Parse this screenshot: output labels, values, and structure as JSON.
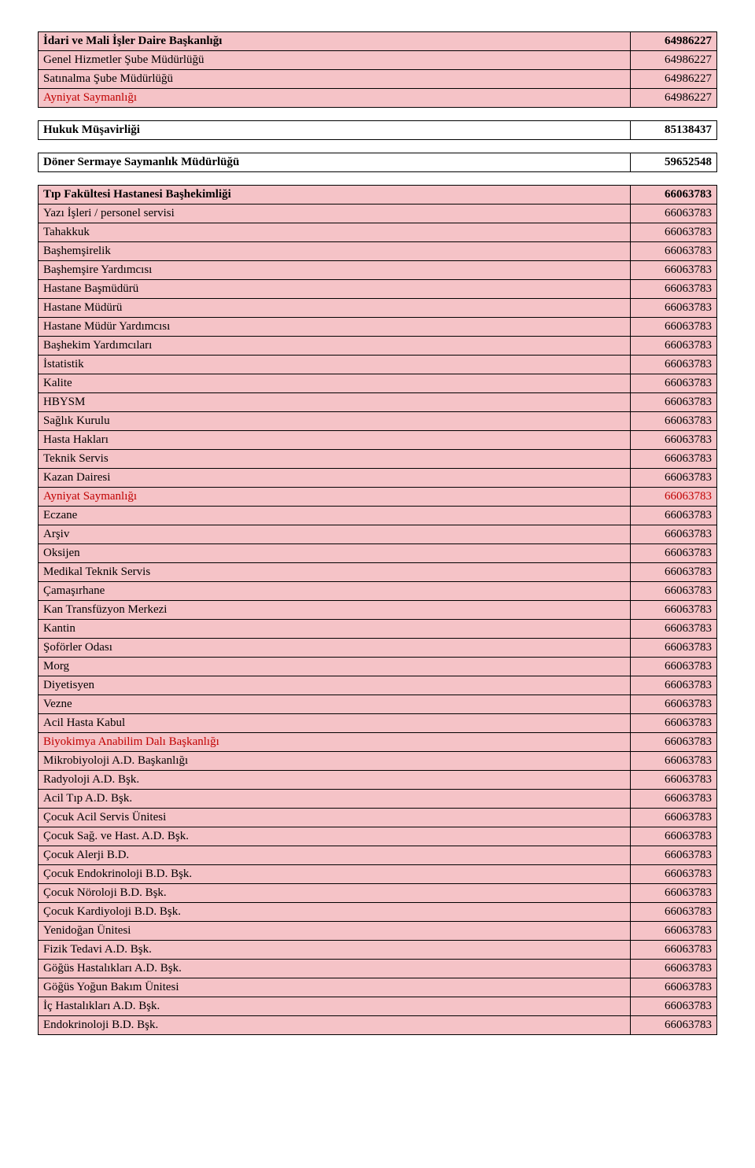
{
  "groups": [
    {
      "rows": [
        {
          "label": "İdari ve Mali İşler Daire Başkanlığı",
          "value": "64986227",
          "bold": true,
          "bg": "#f5c3c7",
          "red": false,
          "numRed": false
        },
        {
          "label": "Genel Hizmetler Şube Müdürlüğü",
          "value": "64986227",
          "bold": false,
          "bg": "#f5c3c7",
          "red": false,
          "numRed": false
        },
        {
          "label": "Satınalma Şube Müdürlüğü",
          "value": "64986227",
          "bold": false,
          "bg": "#f5c3c7",
          "red": false,
          "numRed": false
        },
        {
          "label": "Ayniyat Saymanlığı",
          "value": "64986227",
          "bold": false,
          "bg": "#f5c3c7",
          "red": true,
          "numRed": false
        }
      ]
    },
    {
      "rows": [
        {
          "label": "Hukuk Müşavirliği",
          "value": "85138437",
          "bold": true,
          "bg": "#ffffff",
          "red": false,
          "numRed": false
        }
      ]
    },
    {
      "rows": [
        {
          "label": "Döner Sermaye Saymanlık Müdürlüğü",
          "value": "59652548",
          "bold": true,
          "bg": "#ffffff",
          "red": false,
          "numRed": false
        }
      ]
    },
    {
      "rows": [
        {
          "label": "Tıp Fakültesi Hastanesi Başhekimliği",
          "value": "66063783",
          "bold": true,
          "bg": "#f5c3c7",
          "red": false,
          "numRed": false
        },
        {
          "label": "Yazı İşleri / personel servisi",
          "value": "66063783",
          "bold": false,
          "bg": "#f5c3c7",
          "red": false,
          "numRed": false
        },
        {
          "label": "Tahakkuk",
          "value": "66063783",
          "bold": false,
          "bg": "#f5c3c7",
          "red": false,
          "numRed": false
        },
        {
          "label": "Başhemşirelik",
          "value": "66063783",
          "bold": false,
          "bg": "#f5c3c7",
          "red": false,
          "numRed": false
        },
        {
          "label": "Başhemşire Yardımcısı",
          "value": "66063783",
          "bold": false,
          "bg": "#f5c3c7",
          "red": false,
          "numRed": false
        },
        {
          "label": "Hastane Başmüdürü",
          "value": "66063783",
          "bold": false,
          "bg": "#f5c3c7",
          "red": false,
          "numRed": false
        },
        {
          "label": "Hastane Müdürü",
          "value": "66063783",
          "bold": false,
          "bg": "#f5c3c7",
          "red": false,
          "numRed": false
        },
        {
          "label": "Hastane Müdür Yardımcısı",
          "value": "66063783",
          "bold": false,
          "bg": "#f5c3c7",
          "red": false,
          "numRed": false
        },
        {
          "label": "Başhekim Yardımcıları",
          "value": "66063783",
          "bold": false,
          "bg": "#f5c3c7",
          "red": false,
          "numRed": false
        },
        {
          "label": "İstatistik",
          "value": "66063783",
          "bold": false,
          "bg": "#f5c3c7",
          "red": false,
          "numRed": false
        },
        {
          "label": "Kalite",
          "value": "66063783",
          "bold": false,
          "bg": "#f5c3c7",
          "red": false,
          "numRed": false
        },
        {
          "label": "HBYSM",
          "value": "66063783",
          "bold": false,
          "bg": "#f5c3c7",
          "red": false,
          "numRed": false
        },
        {
          "label": "Sağlık Kurulu",
          "value": "66063783",
          "bold": false,
          "bg": "#f5c3c7",
          "red": false,
          "numRed": false
        },
        {
          "label": "Hasta Hakları",
          "value": "66063783",
          "bold": false,
          "bg": "#f5c3c7",
          "red": false,
          "numRed": false
        },
        {
          "label": "Teknik Servis",
          "value": "66063783",
          "bold": false,
          "bg": "#f5c3c7",
          "red": false,
          "numRed": false
        },
        {
          "label": "Kazan Dairesi",
          "value": "66063783",
          "bold": false,
          "bg": "#f5c3c7",
          "red": false,
          "numRed": false
        },
        {
          "label": "Ayniyat Saymanlığı",
          "value": "66063783",
          "bold": false,
          "bg": "#f5c3c7",
          "red": true,
          "numRed": true
        },
        {
          "label": "Eczane",
          "value": "66063783",
          "bold": false,
          "bg": "#f5c3c7",
          "red": false,
          "numRed": false
        },
        {
          "label": "Arşiv",
          "value": "66063783",
          "bold": false,
          "bg": "#f5c3c7",
          "red": false,
          "numRed": false
        },
        {
          "label": "Oksijen",
          "value": "66063783",
          "bold": false,
          "bg": "#f5c3c7",
          "red": false,
          "numRed": false
        },
        {
          "label": "Medikal Teknik Servis",
          "value": "66063783",
          "bold": false,
          "bg": "#f5c3c7",
          "red": false,
          "numRed": false
        },
        {
          "label": "Çamaşırhane",
          "value": "66063783",
          "bold": false,
          "bg": "#f5c3c7",
          "red": false,
          "numRed": false
        },
        {
          "label": "Kan Transfüzyon Merkezi",
          "value": "66063783",
          "bold": false,
          "bg": "#f5c3c7",
          "red": false,
          "numRed": false
        },
        {
          "label": "Kantin",
          "value": "66063783",
          "bold": false,
          "bg": "#f5c3c7",
          "red": false,
          "numRed": false
        },
        {
          "label": "Şoförler Odası",
          "value": "66063783",
          "bold": false,
          "bg": "#f5c3c7",
          "red": false,
          "numRed": false
        },
        {
          "label": "Morg",
          "value": "66063783",
          "bold": false,
          "bg": "#f5c3c7",
          "red": false,
          "numRed": false
        },
        {
          "label": "Diyetisyen",
          "value": "66063783",
          "bold": false,
          "bg": "#f5c3c7",
          "red": false,
          "numRed": false
        },
        {
          "label": "Vezne",
          "value": "66063783",
          "bold": false,
          "bg": "#f5c3c7",
          "red": false,
          "numRed": false
        },
        {
          "label": "Acil Hasta Kabul",
          "value": "66063783",
          "bold": false,
          "bg": "#f5c3c7",
          "red": false,
          "numRed": false
        },
        {
          "label": "Biyokimya Anabilim Dalı Başkanlığı",
          "value": "66063783",
          "bold": false,
          "bg": "#f5c3c7",
          "red": true,
          "numRed": false
        },
        {
          "label": "Mikrobiyoloji A.D. Başkanlığı",
          "value": "66063783",
          "bold": false,
          "bg": "#f5c3c7",
          "red": false,
          "numRed": false
        },
        {
          "label": "Radyoloji A.D. Bşk.",
          "value": "66063783",
          "bold": false,
          "bg": "#f5c3c7",
          "red": false,
          "numRed": false
        },
        {
          "label": "Acil Tıp A.D. Bşk.",
          "value": "66063783",
          "bold": false,
          "bg": "#f5c3c7",
          "red": false,
          "numRed": false
        },
        {
          "label": "Çocuk Acil Servis Ünitesi",
          "value": "66063783",
          "bold": false,
          "bg": "#f5c3c7",
          "red": false,
          "numRed": false
        },
        {
          "label": "Çocuk Sağ. ve Hast. A.D. Bşk.",
          "value": "66063783",
          "bold": false,
          "bg": "#f5c3c7",
          "red": false,
          "numRed": false
        },
        {
          "label": "Çocuk Alerji B.D.",
          "value": "66063783",
          "bold": false,
          "bg": "#f5c3c7",
          "red": false,
          "numRed": false
        },
        {
          "label": "Çocuk Endokrinoloji B.D. Bşk.",
          "value": "66063783",
          "bold": false,
          "bg": "#f5c3c7",
          "red": false,
          "numRed": false
        },
        {
          "label": "Çocuk Nöroloji B.D. Bşk.",
          "value": "66063783",
          "bold": false,
          "bg": "#f5c3c7",
          "red": false,
          "numRed": false
        },
        {
          "label": "Çocuk Kardiyoloji B.D. Bşk.",
          "value": "66063783",
          "bold": false,
          "bg": "#f5c3c7",
          "red": false,
          "numRed": false
        },
        {
          "label": "Yenidoğan Ünitesi",
          "value": "66063783",
          "bold": false,
          "bg": "#f5c3c7",
          "red": false,
          "numRed": false
        },
        {
          "label": "Fizik Tedavi A.D. Bşk.",
          "value": "66063783",
          "bold": false,
          "bg": "#f5c3c7",
          "red": false,
          "numRed": false
        },
        {
          "label": "Göğüs Hastalıkları A.D. Bşk.",
          "value": "66063783",
          "bold": false,
          "bg": "#f5c3c7",
          "red": false,
          "numRed": false
        },
        {
          "label": "Göğüs Yoğun Bakım Ünitesi",
          "value": "66063783",
          "bold": false,
          "bg": "#f5c3c7",
          "red": false,
          "numRed": false
        },
        {
          "label": "İç Hastalıkları A.D. Bşk.",
          "value": "66063783",
          "bold": false,
          "bg": "#f5c3c7",
          "red": false,
          "numRed": false
        },
        {
          "label": "Endokrinoloji B.D. Bşk.",
          "value": "66063783",
          "bold": false,
          "bg": "#f5c3c7",
          "red": false,
          "numRed": false
        }
      ]
    }
  ]
}
